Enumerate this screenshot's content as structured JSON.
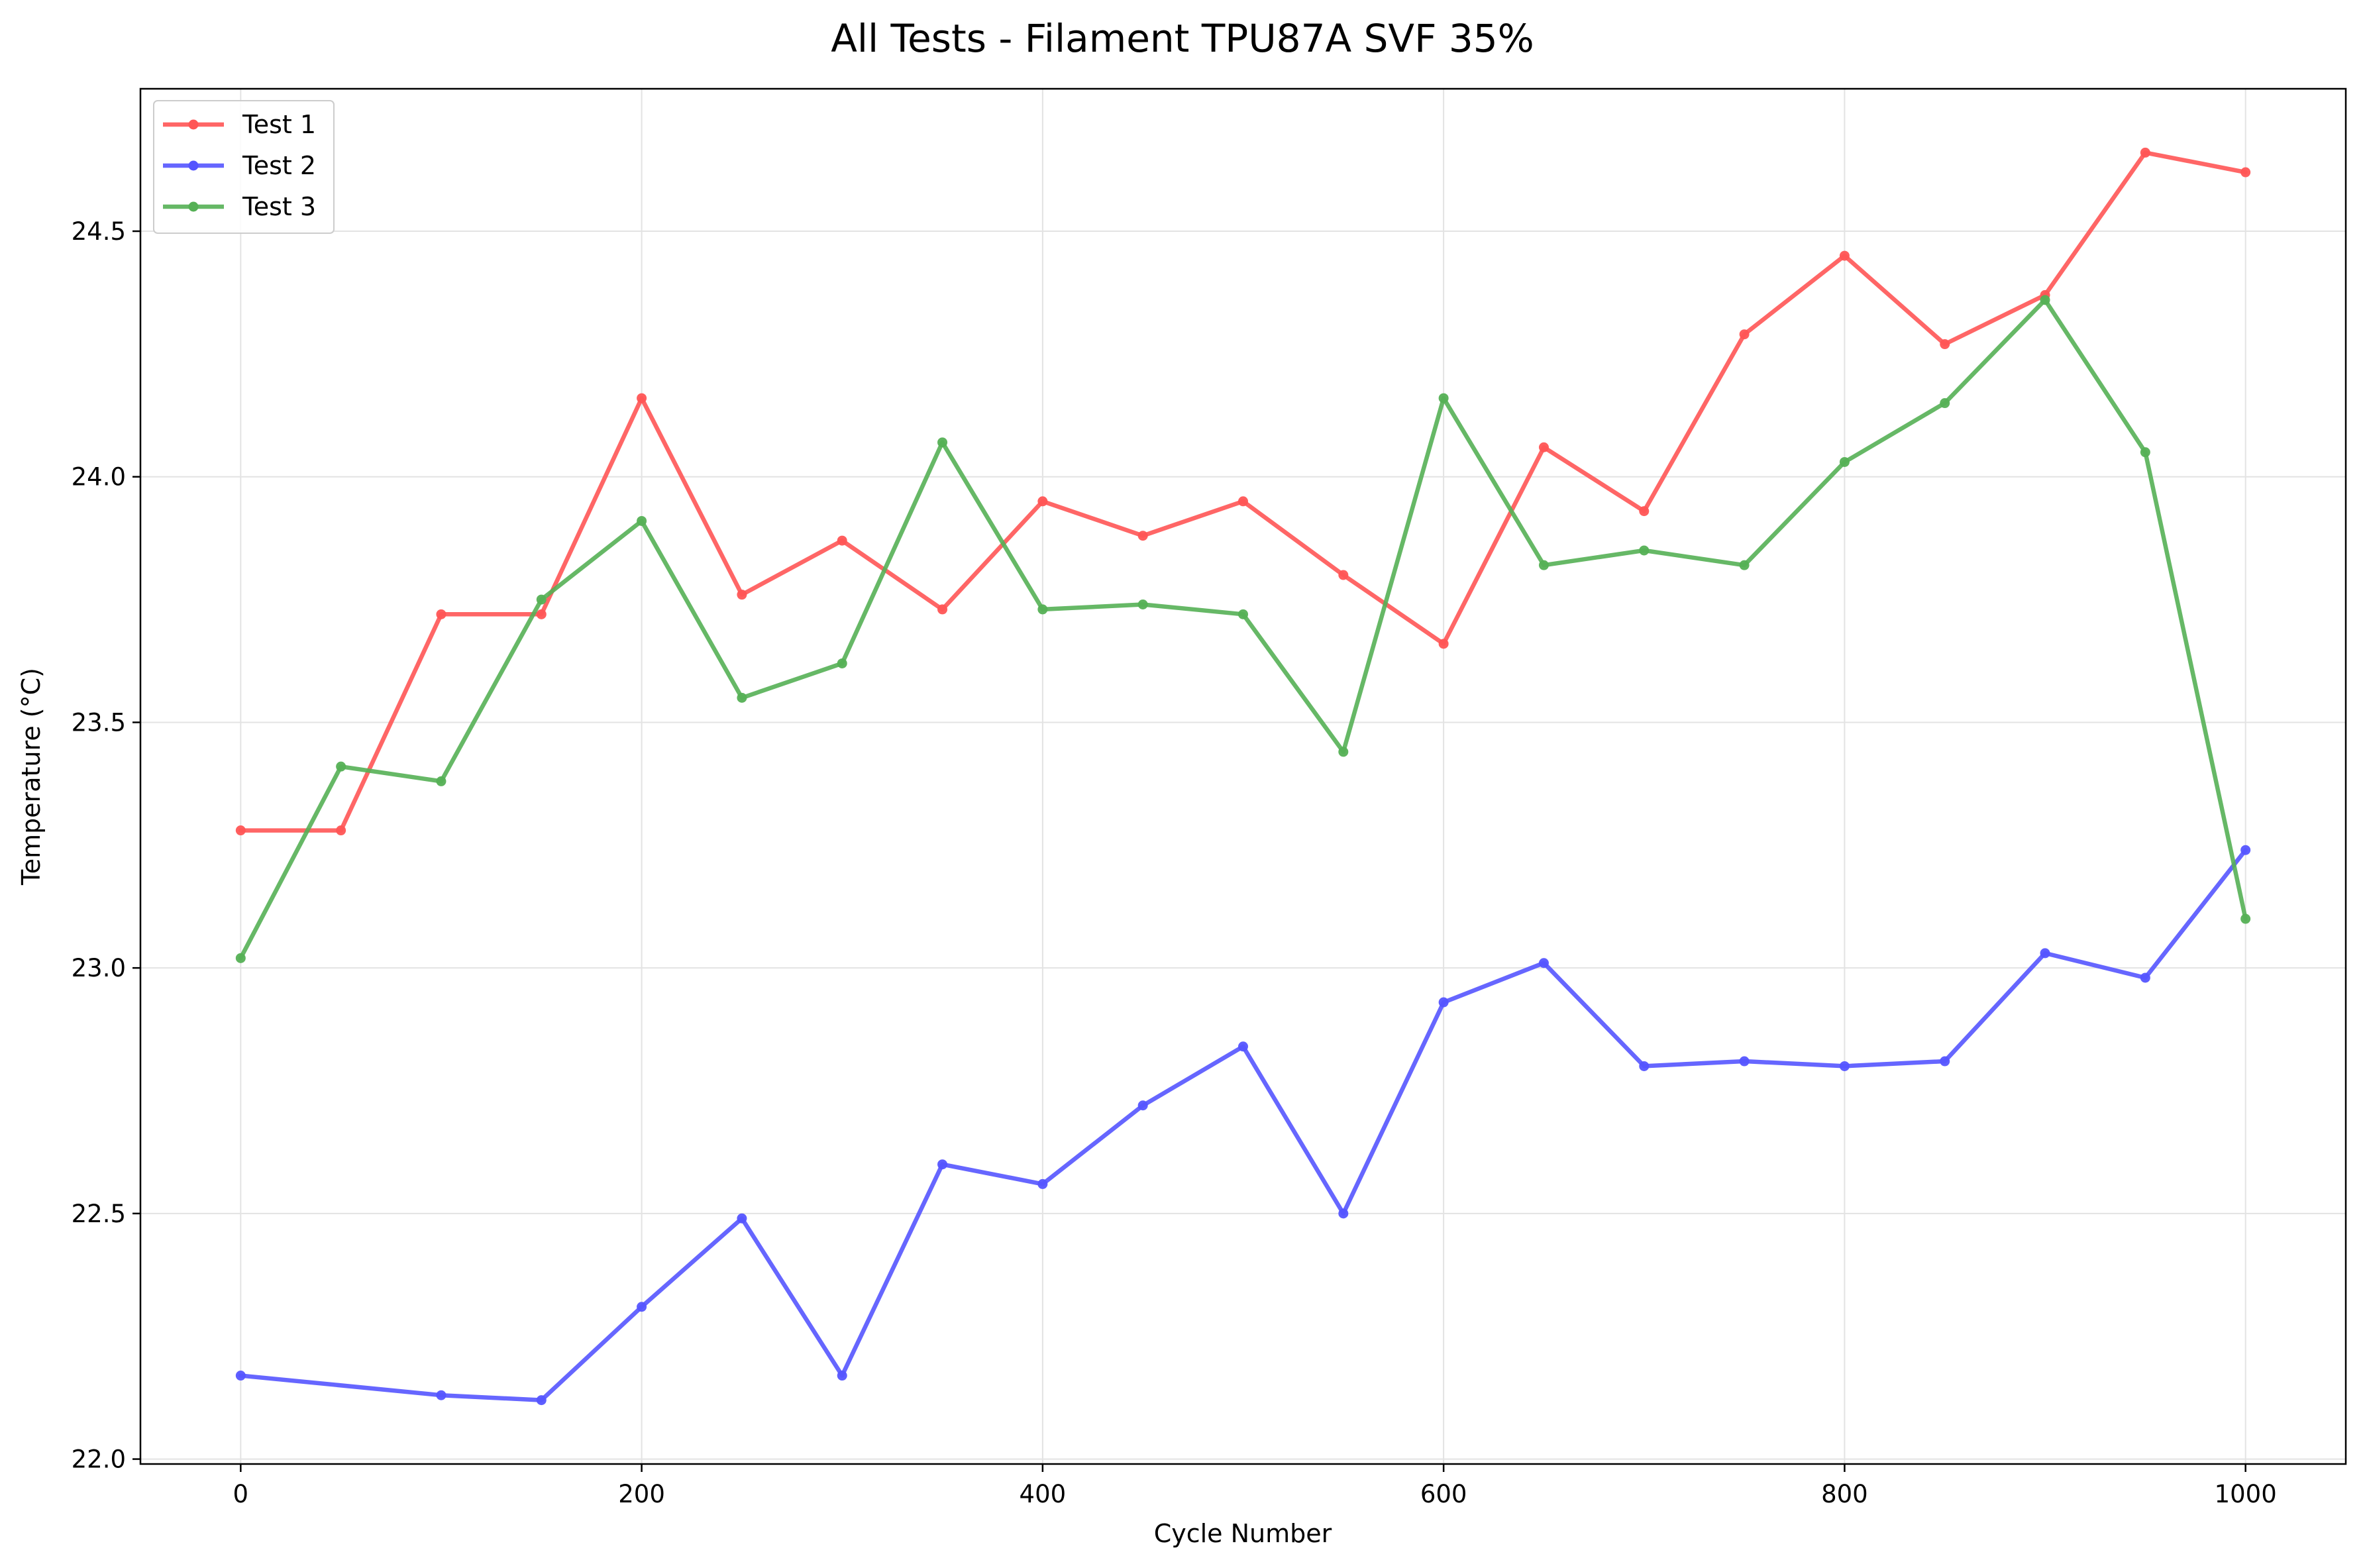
{
  "chart_data": {
    "type": "line",
    "title": "All Tests - Filament TPU87A SVF 35%",
    "xlabel": "Cycle Number",
    "ylabel": "Temperature (°C)",
    "xlim": [
      -50,
      1050
    ],
    "ylim": [
      21.99,
      24.79
    ],
    "xticks": [
      0,
      200,
      400,
      600,
      800,
      1000
    ],
    "yticks": [
      22.0,
      22.5,
      23.0,
      23.5,
      24.0,
      24.5
    ],
    "ytick_labels": [
      "22.0",
      "22.5",
      "23.0",
      "23.5",
      "24.0",
      "24.5"
    ],
    "grid": true,
    "legend_position": "top-left",
    "x": [
      0,
      50,
      100,
      150,
      200,
      250,
      300,
      350,
      400,
      450,
      500,
      550,
      600,
      650,
      700,
      750,
      800,
      850,
      900,
      950,
      1000
    ],
    "series": [
      {
        "name": "Test 1",
        "color": "#ff5555",
        "values": [
          23.28,
          23.28,
          23.72,
          23.72,
          24.16,
          23.76,
          23.87,
          23.73,
          23.95,
          23.88,
          23.95,
          23.8,
          23.66,
          24.06,
          23.93,
          24.29,
          24.45,
          24.27,
          24.37,
          24.66,
          24.62
        ]
      },
      {
        "name": "Test 2",
        "color": "#5555ff",
        "values": [
          22.17,
          null,
          22.13,
          22.12,
          22.31,
          22.49,
          22.17,
          22.6,
          22.56,
          22.72,
          22.84,
          22.5,
          22.93,
          23.01,
          22.8,
          22.81,
          22.8,
          22.81,
          23.03,
          22.98,
          23.24
        ]
      },
      {
        "name": "Test 3",
        "color": "#55b055",
        "values": [
          23.02,
          23.41,
          23.38,
          23.75,
          23.91,
          23.55,
          23.62,
          24.07,
          23.73,
          23.74,
          23.72,
          23.44,
          24.16,
          23.82,
          23.85,
          23.82,
          24.03,
          24.15,
          24.36,
          24.05,
          23.1
        ]
      }
    ]
  }
}
